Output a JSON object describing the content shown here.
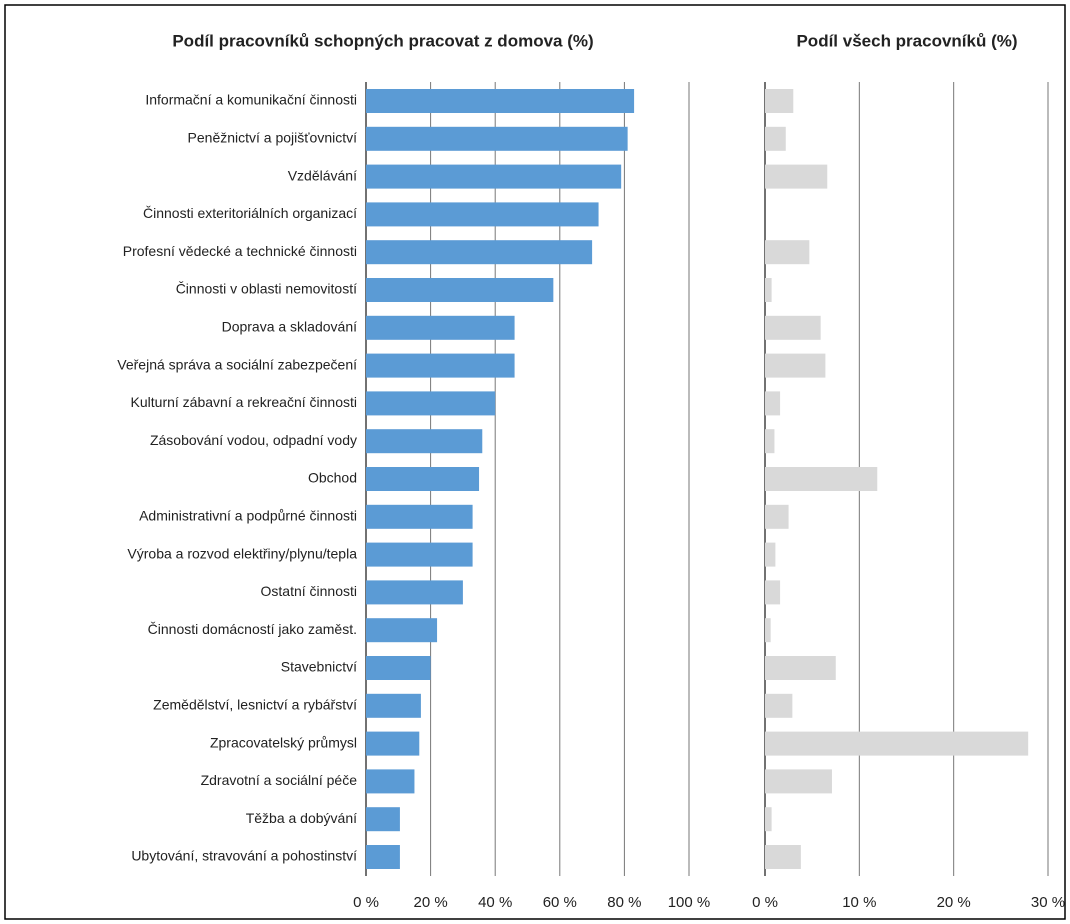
{
  "chart_data": [
    {
      "type": "barh",
      "title": "Podíl pracovníků schopných pracovat z domova (%)",
      "categories": [
        "Informační a komunikační činnosti",
        "Peněžnictví a pojišťovnictví",
        "Vzdělávání",
        "Činnosti exteritoriálních organizací",
        "Profesní vědecké a technické činnosti",
        "Činnosti v oblasti nemovitostí",
        "Doprava a skladování",
        "Veřejná správa a sociální zabezpečení",
        "Kulturní zábavní a rekreační činnosti",
        "Zásobování vodou, odpadní vody",
        "Obchod",
        "Administrativní a podpůrné činnosti",
        "Výroba a rozvod elektřiny/plynu/tepla",
        "Ostatní činnosti",
        "Činnosti domácností jako zaměst.",
        "Stavebnictví",
        "Zemědělství, lesnictví a rybářství",
        "Zpracovatelský průmysl",
        "Zdravotní a sociální péče",
        "Těžba a dobývání",
        "Ubytování, stravování a pohostinství"
      ],
      "values": [
        83,
        81,
        79,
        72,
        70,
        58,
        46,
        46,
        40,
        36,
        35,
        33,
        33,
        30,
        22,
        20,
        17,
        16.5,
        15,
        10.5,
        10.5
      ],
      "color": "#5b9bd5",
      "xlim": [
        0,
        100
      ],
      "xticks": [
        {
          "value": 0,
          "label": "0 %"
        },
        {
          "value": 20,
          "label": "20 %"
        },
        {
          "value": 40,
          "label": "40 %"
        },
        {
          "value": 60,
          "label": "60 %"
        },
        {
          "value": 80,
          "label": "80 %"
        },
        {
          "value": 100,
          "label": "100 %"
        }
      ],
      "grid": true
    },
    {
      "type": "barh",
      "title": "Podíl všech pracovníků (%)",
      "values": [
        3.0,
        2.2,
        6.6,
        0,
        4.7,
        0.7,
        5.9,
        6.4,
        1.6,
        1.0,
        11.9,
        2.5,
        1.1,
        1.6,
        0.6,
        7.5,
        2.9,
        27.9,
        7.1,
        0.7,
        3.8
      ],
      "color": "#d9d9d9",
      "xlim": [
        0,
        30
      ],
      "xticks": [
        {
          "value": 0,
          "label": "0 %"
        },
        {
          "value": 10,
          "label": "10 %"
        },
        {
          "value": 20,
          "label": "20 %"
        },
        {
          "value": 30,
          "label": "30 %"
        }
      ],
      "grid": true
    }
  ]
}
